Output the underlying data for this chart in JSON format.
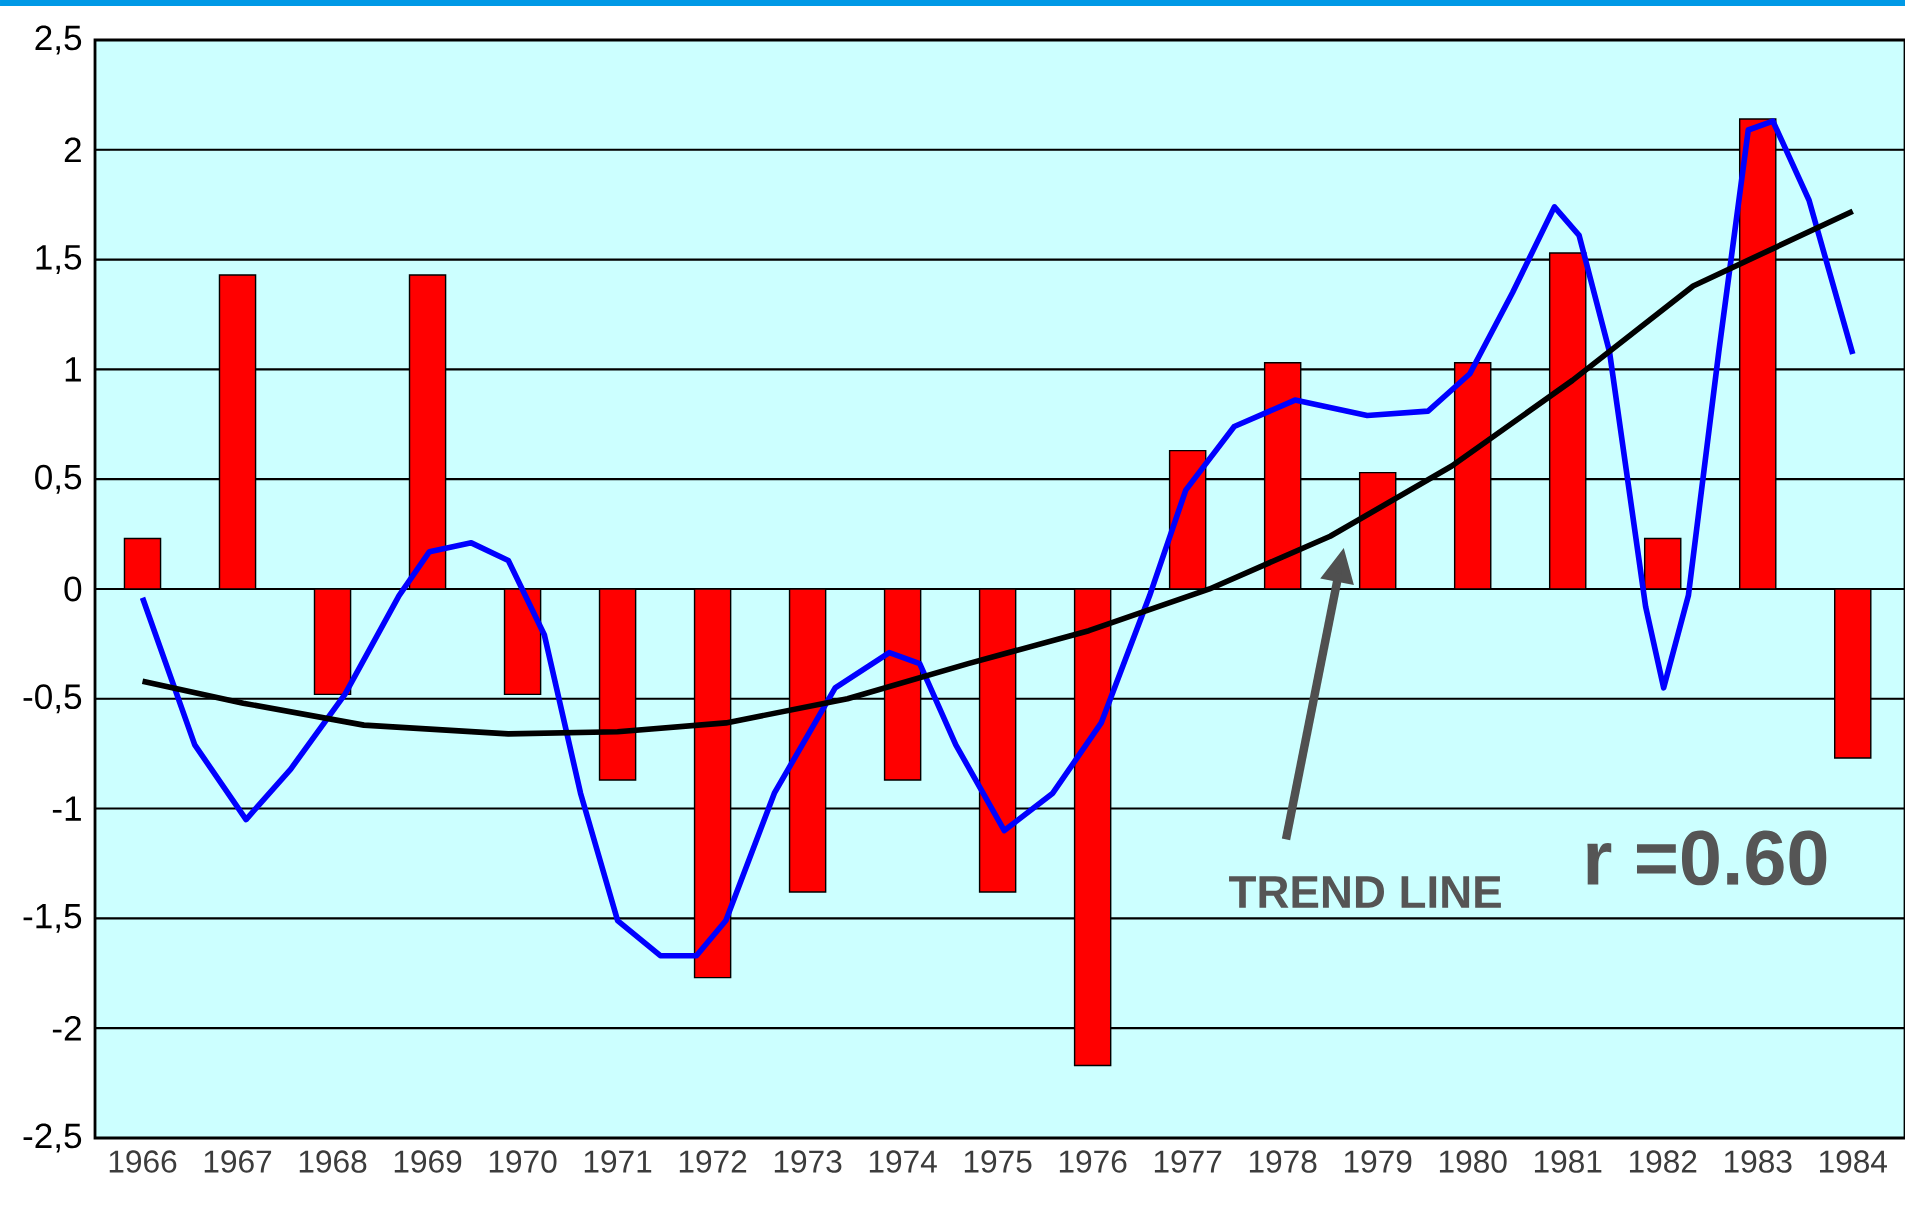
{
  "chart_data": {
    "type": "bar",
    "x": [
      1966,
      1967,
      1968,
      1969,
      1970,
      1971,
      1972,
      1973,
      1974,
      1975,
      1976,
      1977,
      1978,
      1979,
      1980,
      1981,
      1982,
      1983,
      1984
    ],
    "series": [
      {
        "color": "#ff0000",
        "values": [
          0.23,
          1.43,
          -0.48,
          1.43,
          -0.48,
          -0.87,
          -1.77,
          -1.38,
          -0.87,
          -1.38,
          -2.17,
          0.63,
          1.03,
          0.53,
          1.03,
          1.53,
          0.23,
          2.14,
          -0.77
        ]
      },
      {
        "type": "line",
        "color": "#0000ff",
        "x": [
          1966,
          1966.55,
          1967.09,
          1967.56,
          1968.13,
          1968.7,
          1969.02,
          1969.46,
          1969.85,
          1970.23,
          1970.61,
          1971.0,
          1971.45,
          1971.83,
          1972.14,
          1972.65,
          1973.29,
          1973.86,
          1974.18,
          1974.56,
          1975.07,
          1975.58,
          1976.09,
          1976.6,
          1976.98,
          1977.49,
          1978.13,
          1978.89,
          1979.53,
          1979.97,
          1980.42,
          1980.86,
          1981.12,
          1981.44,
          1981.82,
          1982.01,
          1982.27,
          1982.59,
          1982.9,
          1983.16,
          1983.54,
          1984.0
        ],
        "values": [
          -0.04,
          -0.71,
          -1.05,
          -0.82,
          -0.48,
          -0.03,
          0.17,
          0.21,
          0.13,
          -0.21,
          -0.93,
          -1.51,
          -1.67,
          -1.67,
          -1.51,
          -0.93,
          -0.45,
          -0.29,
          -0.34,
          -0.71,
          -1.1,
          -0.93,
          -0.61,
          -0.03,
          0.45,
          0.74,
          0.86,
          0.79,
          0.81,
          0.98,
          1.35,
          1.74,
          1.61,
          1.08,
          -0.08,
          -0.45,
          -0.03,
          1.08,
          2.09,
          2.13,
          1.77,
          1.07
        ]
      },
      {
        "type": "line",
        "color": "#000000",
        "x": [
          1966,
          1967.06,
          1968.33,
          1969.85,
          1971,
          1972.14,
          1973.42,
          1974.69,
          1975.96,
          1977.23,
          1978.5,
          1979.78,
          1981.05,
          1982.32,
          1984
        ],
        "values": [
          -0.42,
          -0.52,
          -0.62,
          -0.66,
          -0.65,
          -0.61,
          -0.5,
          -0.34,
          -0.19,
          0.0,
          0.24,
          0.56,
          0.95,
          1.38,
          1.72
        ]
      }
    ],
    "xlim": [
      1965.5,
      1984.55
    ],
    "xticks": [
      1966,
      1967,
      1968,
      1969,
      1970,
      1971,
      1972,
      1973,
      1974,
      1975,
      1976,
      1977,
      1978,
      1979,
      1980,
      1981,
      1982,
      1983,
      1984
    ],
    "ylim": [
      -2.5,
      2.5
    ],
    "yticks": [
      {
        "value": -2.5,
        "label": "-2,5"
      },
      {
        "value": -2,
        "label": "-2"
      },
      {
        "value": -1.5,
        "label": "-1,5"
      },
      {
        "value": -1,
        "label": "-1"
      },
      {
        "value": -0.5,
        "label": "-0,5"
      },
      {
        "value": 0,
        "label": "0"
      },
      {
        "value": 0.5,
        "label": "0,5"
      },
      {
        "value": 1,
        "label": "1"
      },
      {
        "value": 1.5,
        "label": "1,5"
      },
      {
        "value": 2,
        "label": "2"
      },
      {
        "value": 2.5,
        "label": "2,5"
      }
    ],
    "grid": "y",
    "annotations": [
      "TREND LINE",
      "r =0.60"
    ]
  }
}
